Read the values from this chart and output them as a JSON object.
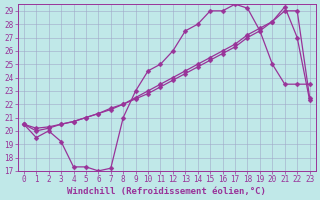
{
  "background_color": "#c0e8e8",
  "grid_color": "#a0a8c8",
  "line_color": "#993399",
  "marker": "D",
  "marker_size": 2.5,
  "line_width": 0.9,
  "xlabel": "Windchill (Refroidissement éolien,°C)",
  "xlabel_fontsize": 6.5,
  "xtick_fontsize": 5.5,
  "ytick_fontsize": 5.5,
  "xlim": [
    -0.5,
    23.5
  ],
  "ylim": [
    17,
    29.5
  ],
  "yticks": [
    17,
    18,
    19,
    20,
    21,
    22,
    23,
    24,
    25,
    26,
    27,
    28,
    29
  ],
  "xticks": [
    0,
    1,
    2,
    3,
    4,
    5,
    6,
    7,
    8,
    9,
    10,
    11,
    12,
    13,
    14,
    15,
    16,
    17,
    18,
    19,
    20,
    21,
    22,
    23
  ],
  "series": [
    {
      "x": [
        0,
        1,
        2,
        3,
        4,
        5,
        6,
        7,
        8,
        9,
        10,
        11,
        12,
        13,
        14,
        15,
        16,
        17,
        18,
        19,
        20,
        21,
        22,
        23
      ],
      "y": [
        20.5,
        19.5,
        20.0,
        19.2,
        17.3,
        17.3,
        17.0,
        17.2,
        21.0,
        23.0,
        24.5,
        25.0,
        26.0,
        27.5,
        28.0,
        29.0,
        29.0,
        29.5,
        29.2,
        27.5,
        25.0,
        23.5,
        23.5,
        23.5
      ]
    },
    {
      "x": [
        0,
        1,
        2,
        3,
        4,
        5,
        6,
        7,
        8,
        9,
        10,
        11,
        12,
        13,
        14,
        15,
        16,
        17,
        18,
        19,
        20,
        21,
        22,
        23
      ],
      "y": [
        20.5,
        20.2,
        20.3,
        20.5,
        20.7,
        21.0,
        21.3,
        21.7,
        22.0,
        22.5,
        23.0,
        23.5,
        24.0,
        24.5,
        25.0,
        25.5,
        26.0,
        26.5,
        27.2,
        27.7,
        28.2,
        29.0,
        29.0,
        22.5
      ]
    },
    {
      "x": [
        0,
        1,
        2,
        3,
        4,
        5,
        6,
        7,
        8,
        9,
        10,
        11,
        12,
        13,
        14,
        15,
        16,
        17,
        18,
        19,
        20,
        21,
        22,
        23
      ],
      "y": [
        20.5,
        20.0,
        20.2,
        20.5,
        20.7,
        21.0,
        21.3,
        21.6,
        22.0,
        22.4,
        22.8,
        23.3,
        23.8,
        24.3,
        24.8,
        25.3,
        25.8,
        26.3,
        27.0,
        27.5,
        28.2,
        29.3,
        27.0,
        22.3
      ]
    }
  ]
}
